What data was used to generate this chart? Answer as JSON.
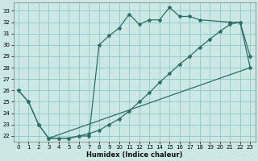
{
  "xlabel": "Humidex (Indice chaleur)",
  "bg_color": "#cce8e4",
  "grid_color": "#99cccc",
  "line_color": "#2d6e68",
  "xlim": [
    -0.5,
    23.5
  ],
  "ylim": [
    21.5,
    33.7
  ],
  "xticks": [
    0,
    1,
    2,
    3,
    4,
    5,
    6,
    7,
    8,
    9,
    10,
    11,
    12,
    13,
    14,
    15,
    16,
    17,
    18,
    19,
    20,
    21,
    22,
    23
  ],
  "yticks": [
    22,
    23,
    24,
    25,
    26,
    27,
    28,
    29,
    30,
    31,
    32,
    33
  ],
  "line1_x": [
    0,
    1,
    2,
    3,
    4,
    5,
    6,
    7,
    8,
    9,
    10,
    11,
    12,
    13,
    14,
    15,
    16,
    17,
    18,
    21,
    22,
    23
  ],
  "line1_y": [
    26.0,
    25.0,
    23.0,
    21.8,
    21.8,
    21.8,
    22.0,
    22.0,
    30.0,
    30.8,
    31.5,
    32.7,
    31.8,
    32.2,
    32.2,
    33.3,
    32.5,
    32.5,
    32.2,
    32.0,
    32.0,
    29.0
  ],
  "line2_x": [
    0,
    1,
    2,
    3,
    4,
    5,
    6,
    7,
    8,
    9,
    10,
    11,
    12,
    13,
    14,
    15,
    16,
    17,
    18,
    19,
    20,
    21,
    22,
    23
  ],
  "line2_y": [
    26.0,
    25.0,
    23.0,
    21.8,
    21.8,
    21.8,
    22.0,
    22.2,
    22.5,
    23.0,
    23.5,
    24.2,
    25.0,
    25.8,
    26.7,
    27.5,
    28.3,
    29.0,
    29.8,
    30.5,
    31.2,
    31.8,
    32.0,
    28.0
  ],
  "line3_x": [
    3,
    23
  ],
  "line3_y": [
    21.8,
    28.0
  ]
}
